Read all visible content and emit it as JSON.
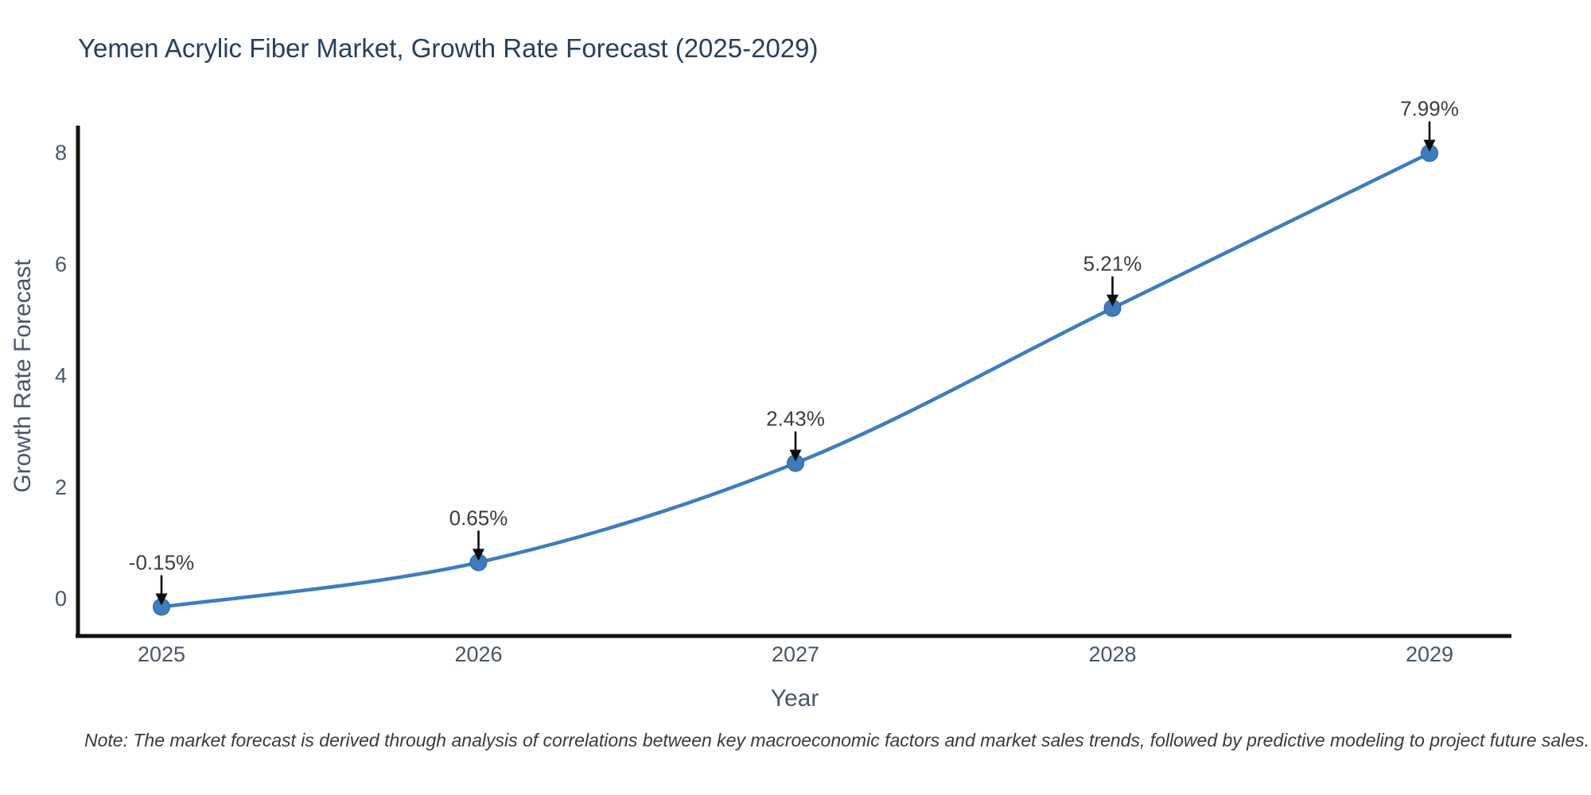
{
  "chart_data": {
    "type": "line",
    "line_shape": "spline",
    "title": "Yemen Acrylic Fiber Market, Growth Rate Forecast (2025-2029)",
    "xlabel": "Year",
    "ylabel": "Growth Rate Forecast",
    "categories": [
      "2025",
      "2026",
      "2027",
      "2028",
      "2029"
    ],
    "values": [
      -0.15,
      0.65,
      2.43,
      5.21,
      7.99
    ],
    "point_labels": [
      "-0.15%",
      "0.65%",
      "2.43%",
      "5.21%",
      "7.99%"
    ],
    "yticks": [
      0,
      2,
      4,
      6,
      8
    ],
    "ylim": [
      -0.75,
      9.2
    ],
    "grid": false,
    "legend_position": "none",
    "note": "Note: The market forecast is derived through analysis of correlations between key macroeconomic factors and market sales trends, followed by predictive modeling to project future sales.",
    "colors": {
      "line": "#3d7dbd",
      "marker": "#3d7dbd",
      "marker_edge": "#2e6496",
      "axis_line": "#111111",
      "title": "#2a3f5f",
      "tick": "#4a5568",
      "axis_title": "#4a5568",
      "annotation_text": "#3d3d3d",
      "arrow": "#0d0d0d",
      "note": "#3a3a3a",
      "background": "#ffffff"
    }
  }
}
